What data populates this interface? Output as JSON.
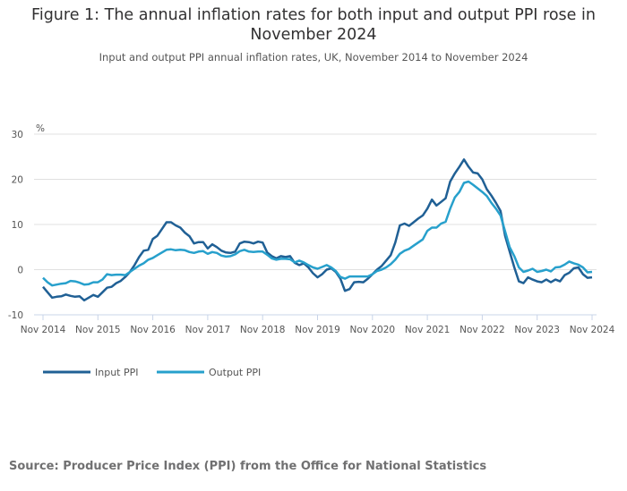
{
  "title": "Figure 1: The annual inflation rates for both input and output PPI rose in November 2024",
  "subtitle": "Input and output PPI annual inflation rates, UK, November 2014 to November 2024",
  "source": "Source: Producer Price Index (PPI) from the Office for National Statistics",
  "chart_data": {
    "type": "line",
    "ylabel": "%",
    "ylim": [
      -10,
      30
    ],
    "yticks": [
      "30",
      "20",
      "10",
      "0",
      "-10"
    ],
    "x_start": "Nov 2014",
    "x_end": "Nov 2024",
    "xticks": [
      "Nov 2014",
      "Nov 2015",
      "Nov 2016",
      "Nov 2017",
      "Nov 2018",
      "Nov 2019",
      "Nov 2020",
      "Nov 2021",
      "Nov 2022",
      "Nov 2023",
      "Nov 2024"
    ],
    "grid": true,
    "legend_placement": "bottom-left",
    "series": [
      {
        "name": "Input PPI",
        "color": "#206095",
        "values": [
          -3.8,
          -5,
          -6.2,
          -6,
          -5.9,
          -5.5,
          -5.8,
          -6,
          -5.9,
          -6.8,
          -6.2,
          -5.6,
          -6,
          -5,
          -4,
          -3.8,
          -3,
          -2.5,
          -1.6,
          -0.5,
          1,
          2.8,
          4.2,
          4.4,
          6.8,
          7.5,
          9,
          10.5,
          10.5,
          9.8,
          9.3,
          8.2,
          7.4,
          5.8,
          6.1,
          6.1,
          4.7,
          5.6,
          5,
          4.2,
          3.8,
          3.7,
          4,
          5.8,
          6.2,
          6.1,
          5.8,
          6.2,
          6,
          3.8,
          3,
          2.5,
          3,
          2.8,
          3,
          1.5,
          1,
          1.4,
          0.5,
          -0.8,
          -1.7,
          -1,
          0,
          0.3,
          -0.5,
          -2,
          -4.7,
          -4.3,
          -2.8,
          -2.7,
          -2.8,
          -2,
          -1,
          0,
          0.8,
          2,
          3.2,
          6,
          9.8,
          10.2,
          9.7,
          10.5,
          11.3,
          12,
          13.5,
          15.5,
          14.2,
          15,
          15.8,
          19.5,
          21.3,
          22.8,
          24.4,
          22.8,
          21.5,
          21.3,
          20,
          17.8,
          16.4,
          14.8,
          13,
          7.5,
          4,
          0.5,
          -2.6,
          -3,
          -1.7,
          -2.2,
          -2.6,
          -2.8,
          -2.2,
          -2.8,
          -2.2,
          -2.6,
          -1.2,
          -0.7,
          0.3,
          0.5,
          -1,
          -1.8,
          -1.7
        ]
      },
      {
        "name": "Output PPI",
        "color": "#27a0cc",
        "values": [
          -1.8,
          -2.8,
          -3.5,
          -3.3,
          -3.1,
          -3,
          -2.5,
          -2.6,
          -2.9,
          -3.3,
          -3.2,
          -2.8,
          -2.8,
          -2.2,
          -1,
          -1.2,
          -1.1,
          -1.1,
          -1.2,
          -0.5,
          0.2,
          0.9,
          1.4,
          2.2,
          2.6,
          3.2,
          3.8,
          4.4,
          4.5,
          4.3,
          4.4,
          4.3,
          3.9,
          3.7,
          4,
          4.1,
          3.5,
          3.9,
          3.7,
          3.1,
          2.9,
          3,
          3.4,
          4.1,
          4.4,
          4,
          3.9,
          4,
          4,
          3.3,
          2.5,
          2.2,
          2.4,
          2.4,
          2.3,
          1.6,
          2,
          1.6,
          1,
          0.5,
          0.2,
          0.6,
          1,
          0.5,
          -0.3,
          -1.6,
          -2,
          -1.5,
          -1.5,
          -1.5,
          -1.5,
          -1.5,
          -1,
          -0.3,
          0,
          0.5,
          1.2,
          2.2,
          3.5,
          4.2,
          4.6,
          5.3,
          6,
          6.7,
          8.6,
          9.3,
          9.3,
          10.2,
          10.6,
          13.5,
          16,
          17.2,
          19.2,
          19.5,
          18.8,
          18,
          17.2,
          16.3,
          14.8,
          13.5,
          12,
          8.5,
          5,
          3,
          0.5,
          -0.5,
          -0.2,
          0.2,
          -0.5,
          -0.3,
          0,
          -0.4,
          0.5,
          0.6,
          1.1,
          1.8,
          1.4,
          1.1,
          0.5,
          -0.6,
          -0.5
        ]
      }
    ]
  }
}
